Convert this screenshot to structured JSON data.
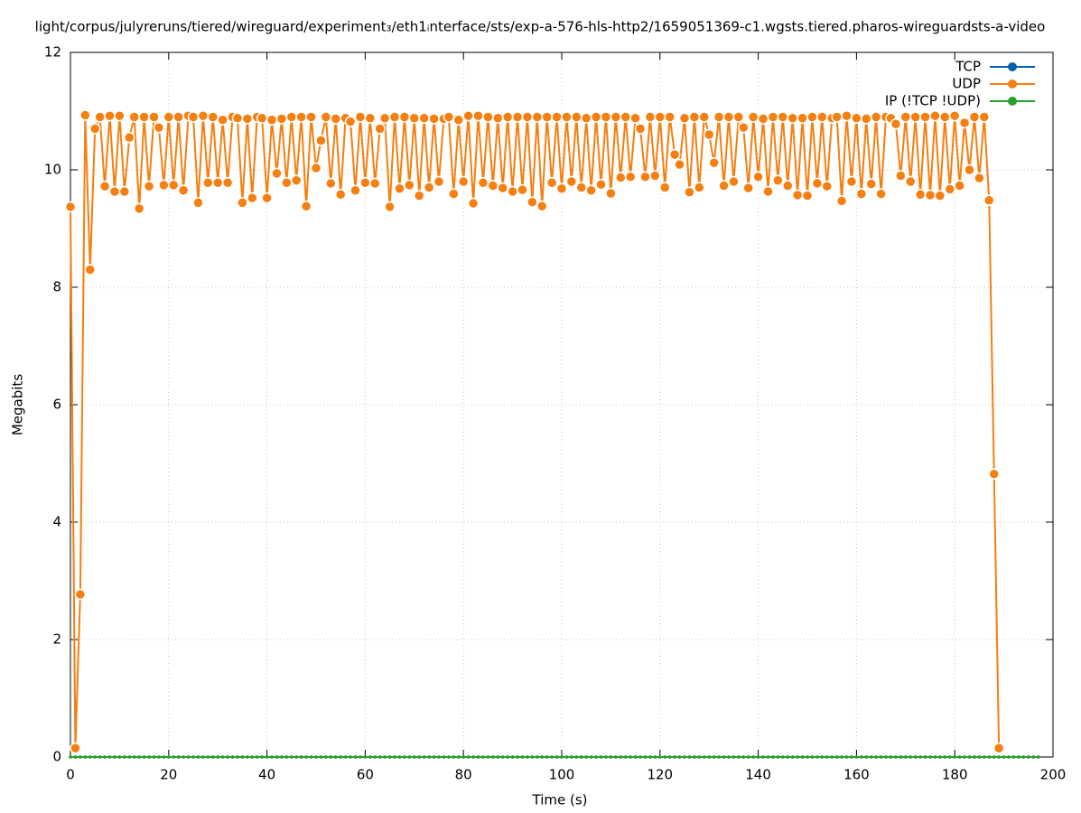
{
  "chart_data": {
    "type": "line",
    "title": "light/corpus/julyreruns/tiered/wireguard/experiment₃/eth1ᵢnterface/sts/exp-a-576-hls-http2/1659051369-c1.wgsts.tiered.pharos-wireguardsts-a-video",
    "xlabel": "Time (s)",
    "ylabel": "Megabits",
    "xlim": [
      0,
      200
    ],
    "xticks": [
      0,
      20,
      40,
      60,
      80,
      100,
      120,
      140,
      160,
      180,
      200
    ],
    "ylim": [
      0,
      12
    ],
    "yticks": [
      0,
      2,
      4,
      6,
      8,
      10,
      12
    ],
    "grid": true,
    "legend": "upper right",
    "x": [
      0,
      1,
      2,
      3,
      4,
      5,
      6,
      7,
      8,
      9,
      10,
      11,
      12,
      13,
      14,
      15,
      16,
      17,
      18,
      19,
      20,
      21,
      22,
      23,
      24,
      25,
      26,
      27,
      28,
      29,
      30,
      31,
      32,
      33,
      34,
      35,
      36,
      37,
      38,
      39,
      40,
      41,
      42,
      43,
      44,
      45,
      46,
      47,
      48,
      49,
      50,
      51,
      52,
      53,
      54,
      55,
      56,
      57,
      58,
      59,
      60,
      61,
      62,
      63,
      64,
      65,
      66,
      67,
      68,
      69,
      70,
      71,
      72,
      73,
      74,
      75,
      76,
      77,
      78,
      79,
      80,
      81,
      82,
      83,
      84,
      85,
      86,
      87,
      88,
      89,
      90,
      91,
      92,
      93,
      94,
      95,
      96,
      97,
      98,
      99,
      100,
      101,
      102,
      103,
      104,
      105,
      106,
      107,
      108,
      109,
      110,
      111,
      112,
      113,
      114,
      115,
      116,
      117,
      118,
      119,
      120,
      121,
      122,
      123,
      124,
      125,
      126,
      127,
      128,
      129,
      130,
      131,
      132,
      133,
      134,
      135,
      136,
      137,
      138,
      139,
      140,
      141,
      142,
      143,
      144,
      145,
      146,
      147,
      148,
      149,
      150,
      151,
      152,
      153,
      154,
      155,
      156,
      157,
      158,
      159,
      160,
      161,
      162,
      163,
      164,
      165,
      166,
      167,
      168,
      169,
      170,
      171,
      172,
      173,
      174,
      175,
      176,
      177,
      178,
      179,
      180,
      181,
      182,
      183,
      184,
      185,
      186,
      187,
      188,
      189,
      190,
      191,
      192,
      193,
      194,
      195,
      196,
      197
    ],
    "series": [
      {
        "name": "TCP",
        "color": "#0060ad",
        "values": [
          0,
          0,
          0,
          0,
          0,
          0,
          0,
          0,
          0,
          0,
          0,
          0,
          0,
          0,
          0,
          0,
          0,
          0,
          0,
          0,
          0,
          0,
          0,
          0,
          0,
          0,
          0,
          0,
          0,
          0,
          0,
          0,
          0,
          0,
          0,
          0,
          0,
          0,
          0,
          0,
          0,
          0,
          0,
          0,
          0,
          0,
          0,
          0,
          0,
          0,
          0,
          0,
          0,
          0,
          0,
          0,
          0,
          0,
          0,
          0,
          0,
          0,
          0,
          0,
          0,
          0,
          0,
          0,
          0,
          0,
          0,
          0,
          0,
          0,
          0,
          0,
          0,
          0,
          0,
          0,
          0,
          0,
          0,
          0,
          0,
          0,
          0,
          0,
          0,
          0,
          0,
          0,
          0,
          0,
          0,
          0,
          0,
          0,
          0,
          0,
          0,
          0,
          0,
          0,
          0,
          0,
          0,
          0,
          0,
          0,
          0,
          0,
          0,
          0,
          0,
          0,
          0,
          0,
          0,
          0,
          0,
          0,
          0,
          0,
          0,
          0,
          0,
          0,
          0,
          0,
          0,
          0,
          0,
          0,
          0,
          0,
          0,
          0,
          0,
          0,
          0,
          0,
          0,
          0,
          0,
          0,
          0,
          0,
          0,
          0,
          0,
          0,
          0,
          0,
          0,
          0,
          0,
          0,
          0,
          0,
          0,
          0,
          0,
          0,
          0,
          0,
          0,
          0,
          0,
          0,
          0,
          0,
          0,
          0,
          0,
          0,
          0,
          0,
          0,
          0,
          0,
          0,
          0,
          0,
          0,
          0,
          0,
          0,
          0,
          0,
          0,
          0,
          0,
          0,
          0,
          0,
          0,
          0
        ]
      },
      {
        "name": "UDP",
        "color": "#f57f10",
        "values": [
          9.37,
          0.15,
          2.77,
          10.93,
          8.3,
          10.7,
          10.9,
          9.72,
          10.92,
          9.63,
          10.92,
          9.63,
          10.55,
          10.9,
          9.34,
          10.9,
          9.72,
          10.9,
          10.72,
          9.74,
          10.9,
          9.74,
          10.9,
          9.65,
          10.92,
          10.9,
          9.44,
          10.92,
          9.78,
          10.9,
          9.78,
          10.85,
          9.78,
          10.9,
          10.88,
          9.44,
          10.87,
          9.52,
          10.9,
          10.88,
          9.52,
          10.85,
          9.94,
          10.87,
          9.78,
          10.9,
          9.82,
          10.9,
          9.38,
          10.9,
          10.03,
          10.5,
          10.9,
          9.77,
          10.87,
          9.58,
          10.88,
          10.82,
          9.65,
          10.9,
          9.78,
          10.88,
          9.77,
          10.7,
          10.88,
          9.37,
          10.9,
          9.68,
          10.9,
          9.74,
          10.88,
          9.56,
          10.88,
          9.7,
          10.87,
          9.8,
          10.87,
          10.9,
          9.59,
          10.85,
          9.8,
          10.92,
          9.43,
          10.92,
          9.78,
          10.9,
          9.73,
          10.88,
          9.69,
          10.9,
          9.63,
          10.9,
          9.66,
          10.9,
          9.45,
          10.9,
          9.38,
          10.9,
          9.78,
          10.9,
          9.68,
          10.9,
          9.8,
          10.9,
          9.7,
          10.88,
          9.65,
          10.9,
          9.75,
          10.9,
          9.6,
          10.9,
          9.87,
          10.9,
          9.88,
          10.88,
          10.7,
          9.88,
          10.9,
          9.9,
          10.9,
          9.7,
          10.9,
          10.26,
          10.09,
          10.88,
          9.62,
          10.9,
          9.7,
          10.9,
          10.6,
          10.12,
          10.9,
          9.73,
          10.9,
          9.8,
          10.9,
          10.72,
          9.69,
          10.9,
          9.88,
          10.87,
          9.63,
          10.9,
          9.82,
          10.9,
          9.73,
          10.88,
          9.57,
          10.88,
          9.56,
          10.9,
          9.77,
          10.9,
          9.72,
          10.88,
          10.9,
          9.47,
          10.92,
          9.8,
          10.88,
          9.59,
          10.87,
          9.76,
          10.9,
          9.59,
          10.9,
          10.88,
          10.78,
          9.9,
          10.9,
          9.8,
          10.9,
          9.58,
          10.9,
          9.57,
          10.92,
          9.56,
          10.9,
          9.67,
          10.92,
          9.73,
          10.8,
          10.0,
          10.9,
          9.86,
          10.9,
          9.48,
          4.82,
          0.15,
          null,
          null,
          null,
          null,
          null,
          null,
          null,
          null
        ]
      },
      {
        "name": "IP (!TCP  !UDP)",
        "color": "#2ca02c",
        "values": [
          0,
          0,
          0,
          0,
          0,
          0,
          0,
          0,
          0,
          0,
          0,
          0,
          0,
          0,
          0,
          0,
          0,
          0,
          0,
          0,
          0,
          0,
          0,
          0,
          0,
          0,
          0,
          0,
          0,
          0,
          0,
          0,
          0,
          0,
          0,
          0,
          0,
          0,
          0,
          0,
          0,
          0,
          0,
          0,
          0,
          0,
          0,
          0,
          0,
          0,
          0,
          0,
          0,
          0,
          0,
          0,
          0,
          0,
          0,
          0,
          0,
          0,
          0,
          0,
          0,
          0,
          0,
          0,
          0,
          0,
          0,
          0,
          0,
          0,
          0,
          0,
          0,
          0,
          0,
          0,
          0,
          0,
          0,
          0,
          0,
          0,
          0,
          0,
          0,
          0,
          0,
          0,
          0,
          0,
          0,
          0,
          0,
          0,
          0,
          0,
          0,
          0,
          0,
          0,
          0,
          0,
          0,
          0,
          0,
          0,
          0,
          0,
          0,
          0,
          0,
          0,
          0,
          0,
          0,
          0,
          0,
          0,
          0,
          0,
          0,
          0,
          0,
          0,
          0,
          0,
          0,
          0,
          0,
          0,
          0,
          0,
          0,
          0,
          0,
          0,
          0,
          0,
          0,
          0,
          0,
          0,
          0,
          0,
          0,
          0,
          0,
          0,
          0,
          0,
          0,
          0,
          0,
          0,
          0,
          0,
          0,
          0,
          0,
          0,
          0,
          0,
          0,
          0,
          0,
          0,
          0,
          0,
          0,
          0,
          0,
          0,
          0,
          0,
          0,
          0,
          0,
          0,
          0,
          0,
          0,
          0,
          0,
          0,
          0,
          0,
          0,
          0,
          0,
          0,
          0,
          0,
          0,
          0
        ]
      }
    ]
  }
}
